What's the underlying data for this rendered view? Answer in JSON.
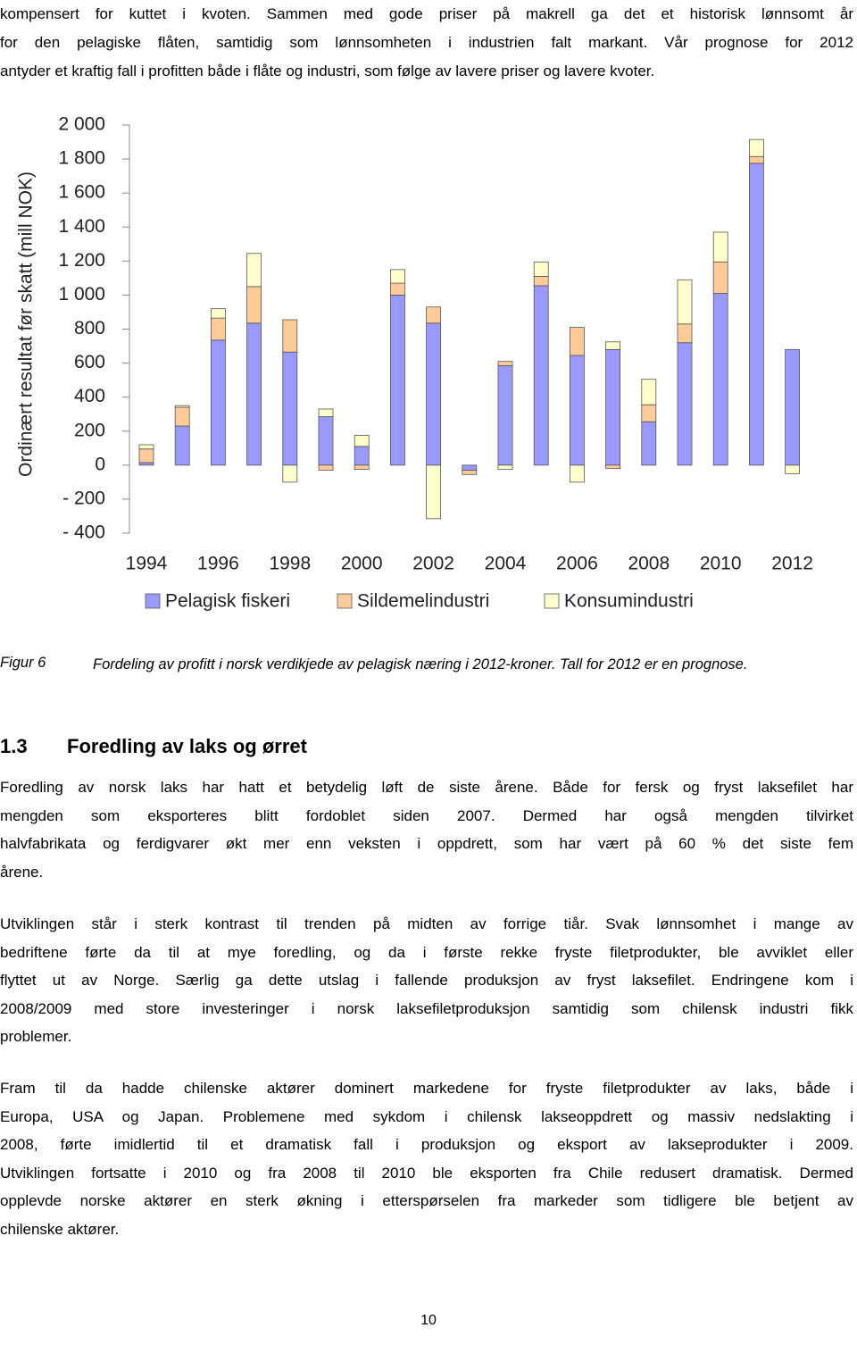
{
  "top_text": [
    "kompensert for kuttet i kvoten. Sammen med gode priser på makrell ga det et historisk lønnsomt år",
    "for den pelagiske flåten, samtidig som lønnsomheten i industrien falt markant. Vår prognose for 2012",
    "antyder et kraftig fall i profitten både i flåte og industri, som følge av lavere priser og lavere kvoter."
  ],
  "chart_data": {
    "type": "stacked-bar",
    "ylabel": "Ordinært resultat før skatt (mill NOK)",
    "categories": [
      "1994",
      null,
      "1996",
      null,
      "1998",
      null,
      "2000",
      null,
      "2002",
      null,
      "2004",
      null,
      "2006",
      null,
      "2008",
      null,
      "2010",
      null,
      "2012"
    ],
    "series": [
      {
        "name": "Pelagisk fiskeri",
        "color": "#9999ff",
        "values": [
          15,
          230,
          735,
          835,
          665,
          285,
          110,
          1000,
          835,
          -30,
          585,
          1055,
          645,
          680,
          255,
          720,
          1010,
          1775,
          680
        ]
      },
      {
        "name": "Sildemelindustri",
        "color": "#ffcc99",
        "values": [
          80,
          110,
          130,
          215,
          190,
          -30,
          -25,
          70,
          95,
          -25,
          25,
          55,
          165,
          -20,
          100,
          110,
          185,
          40,
          0
        ]
      },
      {
        "name": "Konsumindustri",
        "color": "#ffffcc",
        "values": [
          25,
          10,
          55,
          195,
          -100,
          45,
          65,
          80,
          -315,
          0,
          -25,
          85,
          -100,
          45,
          150,
          260,
          175,
          100,
          -50
        ]
      }
    ],
    "ylim": [
      -400,
      2000
    ],
    "yticks": [
      {
        "value": 2000,
        "label": "2 000"
      },
      {
        "value": 1800,
        "label": "1 800"
      },
      {
        "value": 1600,
        "label": "1 600"
      },
      {
        "value": 1400,
        "label": "1 400"
      },
      {
        "value": 1200,
        "label": "1 200"
      },
      {
        "value": 1000,
        "label": "1 000"
      },
      800,
      600,
      400,
      200,
      0,
      {
        "value": -200,
        "label": "- 200"
      },
      {
        "value": -400,
        "label": "- 400"
      }
    ],
    "grid": false,
    "legend": "bottom"
  },
  "figure": {
    "label": "Figur 6",
    "caption": "Fordeling av profitt i norsk verdikjede av pelagisk næring i 2012-kroner. Tall for 2012 er en prognose."
  },
  "section": {
    "number": "1.3",
    "title": "Foredling av laks og ørret"
  },
  "paragraphs": [
    [
      "Foredling av norsk laks har hatt et betydelig løft de siste årene. Både for fersk og fryst laksefilet har",
      "mengden som eksporteres blitt fordoblet siden 2007. Dermed har også mengden tilvirket",
      "halvfabrikata og ferdigvarer økt mer enn veksten i oppdrett, som har vært på 60 % det siste fem",
      "årene."
    ],
    [
      "Utviklingen står i sterk kontrast til trenden på midten av forrige tiår. Svak lønnsomhet i mange av",
      "bedriftene førte da til at mye foredling, og da i første rekke fryste filetprodukter, ble avviklet eller",
      "flyttet ut av Norge. Særlig ga dette utslag i fallende produksjon av fryst laksefilet. Endringene kom i",
      "2008/2009 med store investeringer i norsk laksefiletproduksjon samtidig som chilensk industri fikk",
      "problemer."
    ],
    [
      "Fram til da hadde chilenske aktører dominert markedene for fryste filetprodukter av laks, både i",
      "Europa, USA og Japan. Problemene med sykdom i chilensk lakseoppdrett og massiv nedslakting i",
      "2008, førte imidlertid til et dramatisk fall i produksjon og eksport av lakseprodukter i 2009.",
      "Utviklingen fortsatte i 2010 og fra 2008 til 2010 ble eksporten fra Chile redusert dramatisk. Dermed",
      "opplevde norske aktører en sterk økning i etterspørselen fra markeder som tidligere ble betjent av",
      "chilenske aktører."
    ]
  ],
  "page_number": "10"
}
